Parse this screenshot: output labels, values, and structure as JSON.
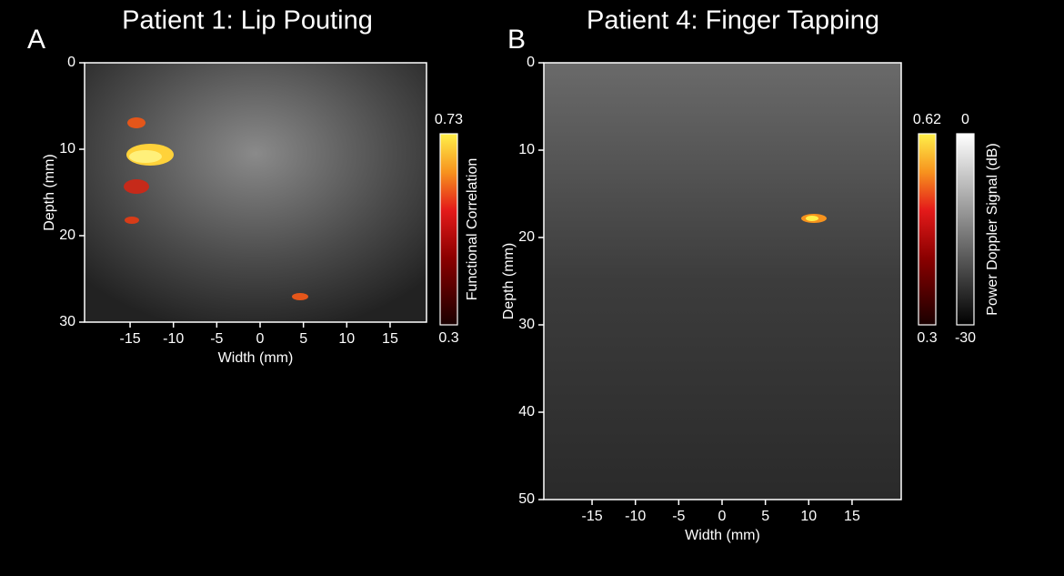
{
  "panels": [
    {
      "letter": "A",
      "title": "Patient 1: Lip Pouting",
      "x_label": "Width (mm)",
      "y_label": "Depth (mm)",
      "x_ticks": [
        -15,
        -10,
        -5,
        0,
        5,
        10,
        15
      ],
      "y_ticks": [
        0,
        10,
        20,
        30
      ],
      "colorbars": [
        {
          "label": "Functional Correlation",
          "max": 0.73,
          "min": 0.3
        }
      ]
    },
    {
      "letter": "B",
      "title": "Patient 4: Finger Tapping",
      "x_label": "Width (mm)",
      "y_label": "Depth (mm)",
      "x_ticks": [
        -15,
        -10,
        -5,
        0,
        5,
        10,
        15
      ],
      "y_ticks": [
        0,
        10,
        20,
        30,
        40,
        50
      ],
      "colorbars": [
        {
          "max": 0.62,
          "min": 0.3
        },
        {
          "label": "Power Doppler Signal (dB)",
          "max": 0,
          "min": -30
        }
      ]
    }
  ]
}
